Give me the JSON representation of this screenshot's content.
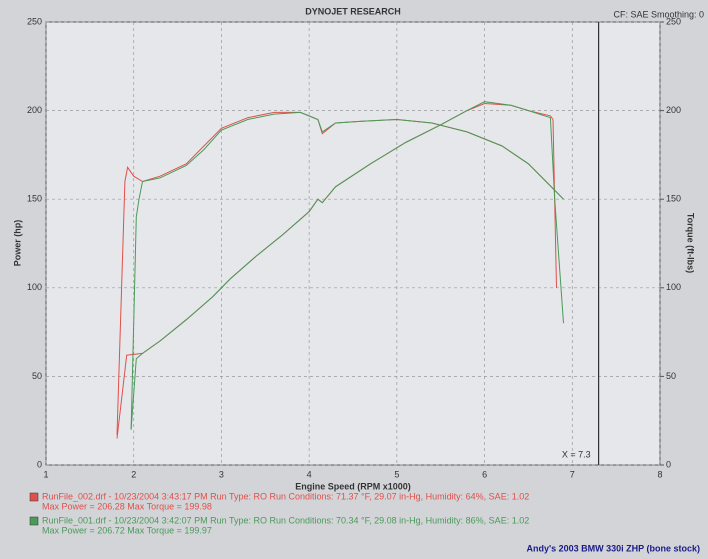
{
  "chart_data": {
    "type": "line",
    "title": "DYNOJET RESEARCH",
    "subtitle": "CF: SAE  Smoothing: 0",
    "x_label": "Engine Speed (RPM x1000)",
    "y_label": "Power (hp)",
    "y2_label": "Torque (ft-lbs)",
    "xlim": [
      1,
      8
    ],
    "xticks": [
      1,
      2,
      3,
      4,
      5,
      6,
      7,
      8
    ],
    "ylim": [
      0,
      250
    ],
    "yticks": [
      0,
      50,
      100,
      150,
      200,
      250
    ],
    "y2lim": [
      0,
      250
    ],
    "y2ticks": [
      0,
      50,
      100,
      150,
      200,
      250
    ],
    "grid": true,
    "cursor": {
      "value": 7.3,
      "label": "X = 7.3"
    },
    "series": [
      {
        "color": "#e0504a",
        "x": [
          1.81,
          1.9,
          1.93,
          2.0,
          2.1,
          2.3,
          2.6,
          2.8,
          3.0,
          3.3,
          3.6,
          3.9,
          4.1,
          4.15,
          4.3,
          4.6,
          5.0,
          5.4,
          5.8,
          6.2,
          6.5,
          6.7,
          6.9
        ],
        "values": [
          17,
          160,
          168,
          163,
          160,
          163,
          170,
          180,
          190,
          196,
          199,
          199,
          195,
          187,
          193,
          194,
          195,
          193,
          188,
          180,
          170,
          160,
          150
        ]
      },
      {
        "color": "#e0504a",
        "axis": "y2",
        "x": [
          1.81,
          1.88,
          1.92,
          2.1,
          2.3,
          2.6,
          2.9,
          3.1,
          3.4,
          3.7,
          4.0,
          4.1,
          4.15,
          4.3,
          4.7,
          5.1,
          5.5,
          5.8,
          6.0,
          6.3,
          6.5,
          6.75,
          6.78,
          6.82
        ],
        "values": [
          15,
          45,
          62,
          63,
          70,
          82,
          95,
          105,
          118,
          130,
          143,
          150,
          148,
          157,
          170,
          182,
          192,
          200,
          204,
          203,
          200,
          197,
          195,
          100
        ]
      },
      {
        "color": "#4a9a5a",
        "x": [
          1.97,
          2.03,
          2.06,
          2.1,
          2.3,
          2.6,
          2.8,
          3.0,
          3.3,
          3.6,
          3.9,
          4.1,
          4.15,
          4.3,
          4.6,
          5.0,
          5.4,
          5.8,
          6.2,
          6.5,
          6.7,
          6.9
        ],
        "values": [
          20,
          140,
          150,
          160,
          162,
          169,
          178,
          189,
          195,
          198,
          199,
          195,
          188,
          193,
          194,
          195,
          193,
          188,
          180,
          170,
          160,
          150
        ]
      },
      {
        "color": "#4a9a5a",
        "axis": "y2",
        "x": [
          1.97,
          2.03,
          2.1,
          2.3,
          2.6,
          2.9,
          3.1,
          3.4,
          3.7,
          4.0,
          4.1,
          4.15,
          4.3,
          4.7,
          5.1,
          5.5,
          5.8,
          6.0,
          6.3,
          6.5,
          6.75,
          6.8,
          6.9
        ],
        "values": [
          20,
          60,
          63,
          70,
          82,
          95,
          105,
          118,
          130,
          143,
          150,
          148,
          157,
          170,
          182,
          192,
          200,
          205,
          203,
          200,
          196,
          150,
          80
        ]
      }
    ],
    "runs": [
      {
        "color": "#e0504a",
        "text": "RunFile_002.drf - 10/23/2004 3:43:17 PM  Run Type: RO  Run Conditions: 71.37 °F, 29.07 in-Hg,  Humidity:  64%, SAE: 1.02",
        "max": "Max Power = 206.28  Max Torque = 199.98"
      },
      {
        "color": "#4a9a5a",
        "text": "RunFile_001.drf - 10/23/2004 3:42:07 PM  Run Type: RO  Run Conditions: 70.34 °F, 29.08 in-Hg,  Humidity:  86%, SAE: 1.02",
        "max": "Max Power = 206.72  Max Torque = 199.97"
      }
    ],
    "caption": "Andy's  2003 BMW 330i ZHP  (bone stock)"
  }
}
